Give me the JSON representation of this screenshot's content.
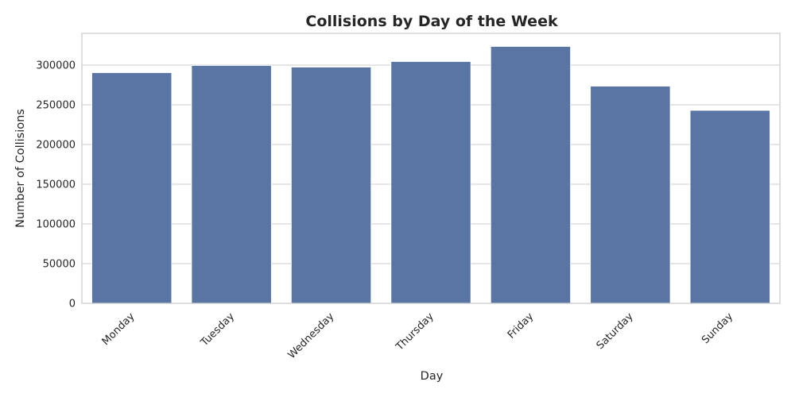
{
  "chart_data": {
    "type": "bar",
    "title": "Collisions by Day of the Week",
    "xlabel": "Day",
    "ylabel": "Number of Collisions",
    "categories": [
      "Monday",
      "Tuesday",
      "Wednesday",
      "Thursday",
      "Friday",
      "Saturday",
      "Sunday"
    ],
    "values": [
      290500,
      299500,
      297500,
      304500,
      323500,
      273500,
      243000
    ],
    "ylim": [
      0,
      340000
    ],
    "yticks": [
      0,
      50000,
      100000,
      150000,
      200000,
      250000,
      300000
    ],
    "ytick_labels": [
      "0",
      "50000",
      "100000",
      "150000",
      "200000",
      "250000",
      "300000"
    ],
    "grid": "horizontal",
    "bar_color": "#5875a4"
  }
}
